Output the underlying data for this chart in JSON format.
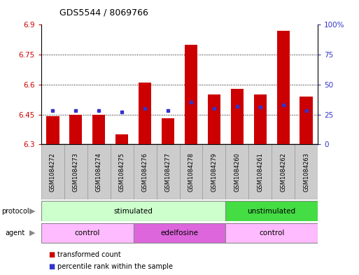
{
  "title": "GDS5544 / 8069766",
  "samples": [
    "GSM1084272",
    "GSM1084273",
    "GSM1084274",
    "GSM1084275",
    "GSM1084276",
    "GSM1084277",
    "GSM1084278",
    "GSM1084279",
    "GSM1084260",
    "GSM1084261",
    "GSM1084262",
    "GSM1084263"
  ],
  "transformed_count": [
    6.44,
    6.45,
    6.45,
    6.35,
    6.61,
    6.43,
    6.8,
    6.55,
    6.58,
    6.55,
    6.87,
    6.54
  ],
  "percentile_rank": [
    28,
    28,
    28,
    27,
    30,
    28,
    35,
    30,
    32,
    31,
    33,
    28
  ],
  "ylim_left": [
    6.3,
    6.9
  ],
  "ylim_right": [
    0,
    100
  ],
  "yticks_left": [
    6.3,
    6.45,
    6.6,
    6.75,
    6.9
  ],
  "yticks_left_labels": [
    "6.3",
    "6.45",
    "6.6",
    "6.75",
    "6.9"
  ],
  "yticks_right": [
    0,
    25,
    50,
    75,
    100
  ],
  "yticks_right_labels": [
    "0",
    "25",
    "50",
    "75",
    "100%"
  ],
  "bar_color": "#cc0000",
  "dot_color": "#3333cc",
  "bar_bottom": 6.3,
  "bar_width": 0.55,
  "protocol_groups": [
    {
      "label": "stimulated",
      "start": 0,
      "end": 8,
      "color": "#ccffcc"
    },
    {
      "label": "unstimulated",
      "start": 8,
      "end": 12,
      "color": "#44dd44"
    }
  ],
  "agent_groups": [
    {
      "label": "control",
      "start": 0,
      "end": 4,
      "color": "#ffbbff"
    },
    {
      "label": "edelfosine",
      "start": 4,
      "end": 8,
      "color": "#dd66dd"
    },
    {
      "label": "control",
      "start": 8,
      "end": 12,
      "color": "#ffbbff"
    }
  ],
  "legend_items": [
    {
      "label": "transformed count",
      "color": "#cc0000"
    },
    {
      "label": "percentile rank within the sample",
      "color": "#3333cc"
    }
  ],
  "left_axis_color": "#cc0000",
  "right_axis_color": "#3333cc",
  "sample_box_color": "#cccccc",
  "sample_box_edge": "#999999"
}
